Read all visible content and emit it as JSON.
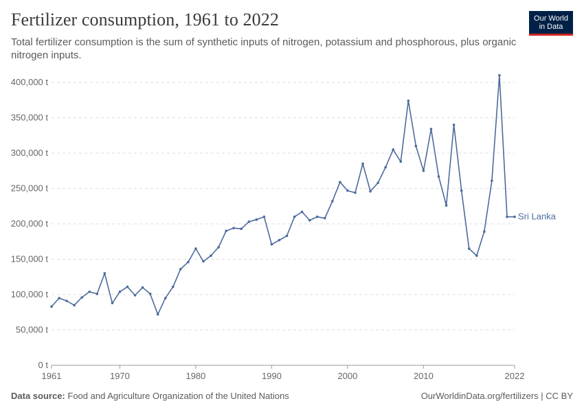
{
  "header": {
    "title": "Fertilizer consumption, 1961 to 2022",
    "subtitle": "Total fertilizer consumption is the sum of synthetic inputs of nitrogen, potassium and phosphorous, plus organic nitrogen inputs.",
    "logo_line1": "Our World",
    "logo_line2": "in Data"
  },
  "footer": {
    "source_label": "Data source:",
    "source_text": "Food and Agriculture Organization of the United Nations",
    "right_text": "OurWorldinData.org/fertilizers | CC BY"
  },
  "colors": {
    "series": "#4c6a9c",
    "grid": "#dddddd",
    "axis": "#999999",
    "logo_bg": "#002147",
    "logo_accent": "#ce261e"
  },
  "chart_data": {
    "type": "line",
    "title": "Fertilizer consumption, 1961 to 2022",
    "xlim": [
      1961,
      2022
    ],
    "ylim": [
      0,
      400000
    ],
    "x_ticks": [
      1961,
      1970,
      1980,
      1990,
      2000,
      2010,
      2022
    ],
    "y_ticks": [
      0,
      50000,
      100000,
      150000,
      200000,
      250000,
      300000,
      350000,
      400000
    ],
    "y_tick_labels": [
      "0 t",
      "50,000 t",
      "100,000 t",
      "150,000 t",
      "200,000 t",
      "250,000 t",
      "300,000 t",
      "350,000 t",
      "400,000 t"
    ],
    "grid": "horizontal dashed",
    "series": [
      {
        "name": "Sri Lanka",
        "color": "#4c6a9c",
        "x": [
          1961,
          1962,
          1963,
          1964,
          1965,
          1966,
          1967,
          1968,
          1969,
          1970,
          1971,
          1972,
          1973,
          1974,
          1975,
          1976,
          1977,
          1978,
          1979,
          1980,
          1981,
          1982,
          1983,
          1984,
          1985,
          1986,
          1987,
          1988,
          1989,
          1990,
          1991,
          1992,
          1993,
          1994,
          1995,
          1996,
          1997,
          1998,
          1999,
          2000,
          2001,
          2002,
          2003,
          2004,
          2005,
          2006,
          2007,
          2008,
          2009,
          2010,
          2011,
          2012,
          2013,
          2014,
          2015,
          2016,
          2017,
          2018,
          2019,
          2020,
          2021,
          2022
        ],
        "y": [
          83000,
          95000,
          91000,
          85000,
          96000,
          104000,
          101000,
          130000,
          88000,
          104000,
          111000,
          99000,
          110000,
          101000,
          72000,
          95000,
          111000,
          136000,
          146000,
          165000,
          147000,
          155000,
          167000,
          190000,
          194000,
          193000,
          203000,
          206000,
          210000,
          171000,
          177000,
          183000,
          210000,
          217000,
          205000,
          210000,
          208000,
          232000,
          259000,
          247000,
          244000,
          285000,
          246000,
          258000,
          280000,
          305000,
          288000,
          374000,
          310000,
          275000,
          334000,
          267000,
          226000,
          340000,
          247000,
          165000,
          155000,
          189000,
          261000,
          410000,
          210000,
          210000
        ]
      }
    ]
  }
}
